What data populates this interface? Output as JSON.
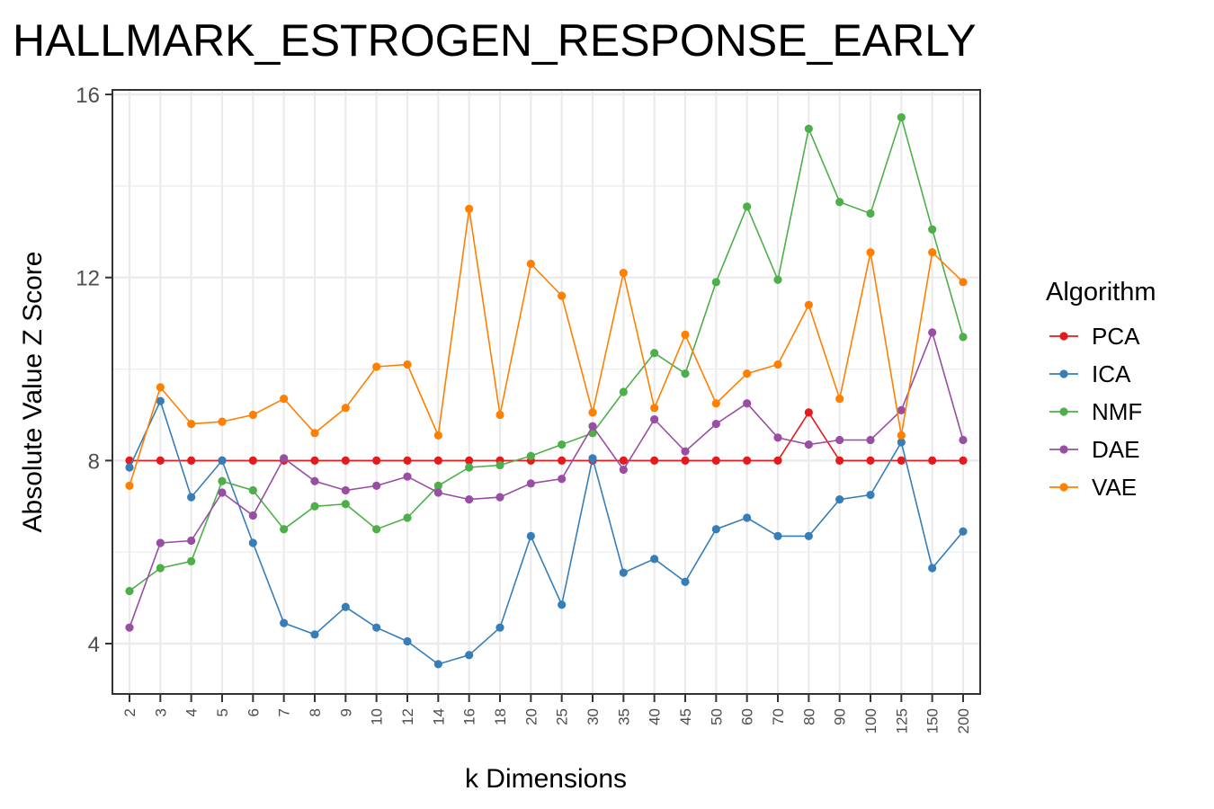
{
  "chart_data": {
    "type": "line",
    "title": "HALLMARK_ESTROGEN_RESPONSE_EARLY",
    "xlabel": "k Dimensions",
    "ylabel": "Absolute Value Z Score",
    "categories": [
      "2",
      "3",
      "4",
      "5",
      "6",
      "7",
      "8",
      "9",
      "10",
      "12",
      "14",
      "16",
      "18",
      "20",
      "25",
      "30",
      "35",
      "40",
      "45",
      "50",
      "60",
      "70",
      "80",
      "90",
      "100",
      "125",
      "150",
      "200"
    ],
    "ylim": [
      2.9,
      16.1
    ],
    "yticks": [
      4,
      8,
      12,
      16
    ],
    "ytick_labels": [
      "4",
      "8",
      "12",
      "16"
    ],
    "grid": true,
    "legend": {
      "title": "Algorithm",
      "position": "right"
    },
    "series": [
      {
        "name": "PCA",
        "color": "#e41a1c",
        "values": [
          8.0,
          8.0,
          8.0,
          8.0,
          8.0,
          8.0,
          8.0,
          8.0,
          8.0,
          8.0,
          8.0,
          8.0,
          8.0,
          8.0,
          8.0,
          8.0,
          8.0,
          8.0,
          8.0,
          8.0,
          8.0,
          8.0,
          9.05,
          8.0,
          8.0,
          8.0,
          8.0,
          8.0
        ]
      },
      {
        "name": "ICA",
        "color": "#377eb8",
        "values": [
          7.85,
          9.3,
          7.2,
          8.0,
          6.2,
          4.45,
          4.2,
          4.8,
          4.35,
          4.05,
          3.55,
          3.75,
          4.35,
          6.35,
          4.85,
          8.05,
          5.55,
          5.85,
          5.35,
          6.5,
          6.75,
          6.35,
          6.35,
          7.15,
          7.25,
          8.4,
          5.65,
          6.45
        ]
      },
      {
        "name": "NMF",
        "color": "#4daf4a",
        "values": [
          5.15,
          5.65,
          5.8,
          7.55,
          7.35,
          6.5,
          7.0,
          7.05,
          6.5,
          6.75,
          7.45,
          7.85,
          7.9,
          8.1,
          8.35,
          8.6,
          9.5,
          10.35,
          9.9,
          11.9,
          13.55,
          11.95,
          15.25,
          13.65,
          13.4,
          15.5,
          13.05,
          10.7
        ]
      },
      {
        "name": "DAE",
        "color": "#984ea3",
        "values": [
          4.35,
          6.2,
          6.25,
          7.3,
          6.8,
          8.05,
          7.55,
          7.35,
          7.45,
          7.65,
          7.3,
          7.15,
          7.2,
          7.5,
          7.6,
          8.75,
          7.8,
          8.9,
          8.2,
          8.8,
          9.25,
          8.5,
          8.35,
          8.45,
          8.45,
          9.1,
          10.8,
          8.45
        ]
      },
      {
        "name": "VAE",
        "color": "#ff7f00",
        "values": [
          7.45,
          9.6,
          8.8,
          8.85,
          9.0,
          9.35,
          8.6,
          9.15,
          10.05,
          10.1,
          8.55,
          13.5,
          9.0,
          12.3,
          11.6,
          9.05,
          12.1,
          9.15,
          10.75,
          9.25,
          9.9,
          10.1,
          11.4,
          9.35,
          12.55,
          8.55,
          12.55,
          11.9
        ]
      }
    ]
  }
}
